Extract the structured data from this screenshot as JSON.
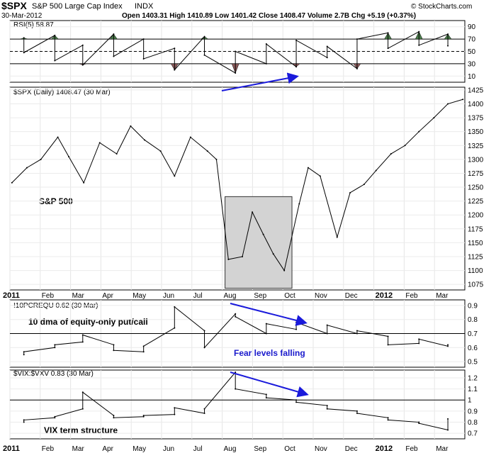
{
  "header": {
    "symbol": "$SPX",
    "name": "S&P 500 Large Cap Index",
    "exchange": "INDX",
    "date": "30-Mar-2012",
    "quote": "Open 1403.31  High 1410.89  Low 1401.42  Close 1408.47  Volume 2.7B  Chg +5.19 (+0.37%)",
    "credit": "© StockCharts.com"
  },
  "colors": {
    "overbought_fill": "#4a7c4a",
    "oversold_fill": "#8b5a5a",
    "highlight_box": "#d3d3d3",
    "annotation_arrow": "#1a1adb",
    "annotation_text": "#1a1acc"
  },
  "chart_data": [
    {
      "type": "line",
      "panel": "rsi",
      "title": "RSI(5) 58.87",
      "y_ticks": [
        90,
        70,
        50,
        30,
        10
      ],
      "ylim": [
        0,
        100
      ],
      "reference_lines": [
        70,
        50,
        30
      ],
      "x": [
        "2011-01",
        "2011-01",
        "2011-02",
        "2011-02",
        "2011-03",
        "2011-03",
        "2011-04",
        "2011-04",
        "2011-05",
        "2011-05",
        "2011-06",
        "2011-06",
        "2011-07",
        "2011-07",
        "2011-08",
        "2011-08",
        "2011-09",
        "2011-09",
        "2011-10",
        "2011-10",
        "2011-11",
        "2011-11",
        "2011-12",
        "2011-12",
        "2012-01",
        "2012-01",
        "2012-02",
        "2012-02",
        "2012-03",
        "2012-03"
      ],
      "values": [
        72,
        48,
        76,
        35,
        60,
        28,
        78,
        42,
        70,
        38,
        55,
        20,
        74,
        44,
        15,
        50,
        30,
        62,
        25,
        68,
        40,
        58,
        22,
        70,
        80,
        55,
        82,
        60,
        78,
        59
      ]
    },
    {
      "type": "line",
      "panel": "price",
      "title": "$SPX (Daily) 1408.47 (30 Mar)",
      "series_labels": [
        "S&P 500"
      ],
      "y_ticks": [
        1425,
        1400,
        1375,
        1350,
        1325,
        1300,
        1275,
        1250,
        1225,
        1200,
        1175,
        1150,
        1125,
        1100,
        1075
      ],
      "ylim": [
        1065,
        1430
      ],
      "x_ticks": [
        "2011",
        "Feb",
        "Mar",
        "Apr",
        "May",
        "Jun",
        "Jul",
        "Aug",
        "Sep",
        "Oct",
        "Nov",
        "Dec",
        "2012",
        "Feb",
        "Mar"
      ],
      "highlight_range_months": [
        "Aug",
        "Oct"
      ],
      "x": [
        "2011-01-03",
        "2011-01-18",
        "2011-02-01",
        "2011-02-18",
        "2011-03-01",
        "2011-03-16",
        "2011-04-01",
        "2011-04-18",
        "2011-05-02",
        "2011-05-16",
        "2011-06-01",
        "2011-06-15",
        "2011-07-01",
        "2011-07-18",
        "2011-07-27",
        "2011-08-08",
        "2011-08-22",
        "2011-09-01",
        "2011-09-12",
        "2011-09-22",
        "2011-10-03",
        "2011-10-18",
        "2011-10-27",
        "2011-11-08",
        "2011-11-25",
        "2011-12-08",
        "2011-12-22",
        "2012-01-03",
        "2012-01-18",
        "2012-02-01",
        "2012-02-15",
        "2012-03-01",
        "2012-03-15",
        "2012-03-30"
      ],
      "values": [
        1258,
        1285,
        1300,
        1340,
        1305,
        1258,
        1330,
        1310,
        1360,
        1335,
        1315,
        1270,
        1340,
        1315,
        1300,
        1120,
        1125,
        1205,
        1165,
        1130,
        1100,
        1220,
        1285,
        1270,
        1160,
        1240,
        1255,
        1280,
        1310,
        1325,
        1350,
        1375,
        1400,
        1408
      ]
    },
    {
      "type": "line",
      "panel": "put-call",
      "title": "!10PCREQU 0.62 (30 Mar)",
      "series_labels": [
        "10 dma of equity-only put/call"
      ],
      "y_ticks": [
        0.9,
        0.8,
        0.7,
        0.6,
        0.5
      ],
      "ylim": [
        0.46,
        0.94
      ],
      "reference_lines": [
        0.7
      ],
      "x": [
        "2011-01",
        "2011-01",
        "2011-02",
        "2011-02",
        "2011-03",
        "2011-03",
        "2011-04",
        "2011-04",
        "2011-05",
        "2011-05",
        "2011-06",
        "2011-06",
        "2011-07",
        "2011-07",
        "2011-08",
        "2011-08",
        "2011-09",
        "2011-09",
        "2011-10",
        "2011-10",
        "2011-11",
        "2011-11",
        "2011-12",
        "2011-12",
        "2012-01",
        "2012-01",
        "2012-02",
        "2012-02",
        "2012-03",
        "2012-03"
      ],
      "values": [
        0.55,
        0.57,
        0.6,
        0.62,
        0.64,
        0.69,
        0.62,
        0.58,
        0.57,
        0.61,
        0.74,
        0.89,
        0.72,
        0.6,
        0.84,
        0.82,
        0.7,
        0.77,
        0.73,
        0.78,
        0.7,
        0.76,
        0.7,
        0.72,
        0.68,
        0.62,
        0.63,
        0.66,
        0.61,
        0.62
      ]
    },
    {
      "type": "line",
      "panel": "vix-term",
      "title": "$VIX:$VXV 0.83 (30 Mar)",
      "series_labels": [
        "VIX term structure"
      ],
      "y_ticks": [
        1.2,
        1.1,
        1.0,
        0.9,
        0.8,
        0.7
      ],
      "ylim": [
        0.65,
        1.27
      ],
      "reference_lines": [
        1.0
      ],
      "x_ticks": [
        "2011",
        "Feb",
        "Mar",
        "Apr",
        "May",
        "Jun",
        "Jul",
        "Aug",
        "Sep",
        "Oct",
        "Nov",
        "Dec",
        "2012",
        "Feb",
        "Mar"
      ],
      "x": [
        "2011-01",
        "2011-01",
        "2011-02",
        "2011-02",
        "2011-03",
        "2011-03",
        "2011-04",
        "2011-04",
        "2011-05",
        "2011-05",
        "2011-06",
        "2011-06",
        "2011-07",
        "2011-07",
        "2011-08",
        "2011-08",
        "2011-09",
        "2011-09",
        "2011-10",
        "2011-10",
        "2011-11",
        "2011-11",
        "2011-12",
        "2011-12",
        "2012-01",
        "2012-01",
        "2012-02",
        "2012-02",
        "2012-03",
        "2012-03"
      ],
      "values": [
        0.8,
        0.82,
        0.84,
        0.85,
        0.92,
        1.07,
        0.86,
        0.84,
        0.85,
        0.86,
        0.87,
        0.93,
        0.88,
        0.92,
        1.25,
        1.1,
        1.05,
        1.02,
        1.0,
        0.98,
        0.95,
        0.92,
        0.9,
        0.88,
        0.84,
        0.82,
        0.8,
        0.79,
        0.73,
        0.83
      ]
    }
  ],
  "annotations": {
    "fear_levels": "Fear levels falling"
  }
}
